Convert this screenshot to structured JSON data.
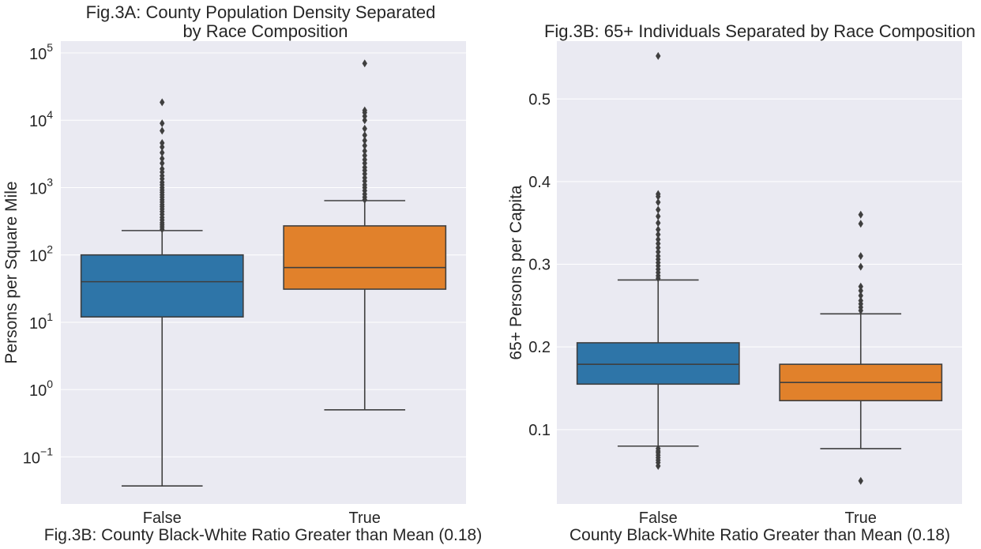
{
  "chart_data": [
    {
      "type": "box",
      "title_lines": [
        "Fig.3A: County Population Density Separated",
        "by Race Composition"
      ],
      "xlabel": "Fig.3B: County Black-White Ratio Greater than Mean (0.18)",
      "ylabel": "Persons per Square Mile",
      "yscale": "log",
      "ylim": [
        0.02,
        150000
      ],
      "y_ticks": [
        {
          "value": 0.1,
          "base": "10",
          "exp": "−1"
        },
        {
          "value": 1,
          "base": "10",
          "exp": "0"
        },
        {
          "value": 10,
          "base": "10",
          "exp": "1"
        },
        {
          "value": 100,
          "base": "10",
          "exp": "2"
        },
        {
          "value": 1000,
          "base": "10",
          "exp": "3"
        },
        {
          "value": 10000,
          "base": "10",
          "exp": "4"
        },
        {
          "value": 100000,
          "base": "10",
          "exp": "5"
        }
      ],
      "categories": [
        "False",
        "True"
      ],
      "boxes": [
        {
          "category": "False",
          "color": "#2e75a8",
          "whislo": 0.037,
          "q1": 12,
          "med": 40,
          "q3": 100,
          "whishi": 230,
          "fliers": [
            240,
            260,
            280,
            300,
            330,
            360,
            400,
            440,
            480,
            520,
            560,
            610,
            660,
            720,
            780,
            850,
            920,
            1000,
            1100,
            1200,
            1350,
            1500,
            1700,
            1900,
            2300,
            2700,
            3300,
            4000,
            4600,
            7000,
            9000,
            18500
          ]
        },
        {
          "category": "True",
          "color": "#e1812b",
          "whislo": 0.5,
          "q1": 31,
          "med": 65,
          "q3": 270,
          "whishi": 640,
          "fliers": [
            660,
            720,
            800,
            900,
            1000,
            1100,
            1250,
            1400,
            1600,
            1800,
            2000,
            2300,
            2600,
            3000,
            3500,
            4200,
            5000,
            6000,
            7500,
            10000,
            11500,
            13000,
            14000,
            70000
          ]
        }
      ]
    },
    {
      "type": "box",
      "title_lines": [
        "Fig.3B: 65+ Individuals Separated by Race Composition"
      ],
      "xlabel": "County Black-White Ratio Greater than Mean (0.18)",
      "ylabel": "65+ Persons per Capita",
      "yscale": "linear",
      "ylim": [
        0.01,
        0.57
      ],
      "y_ticks": [
        {
          "value": 0.1,
          "label": "0.1"
        },
        {
          "value": 0.2,
          "label": "0.2"
        },
        {
          "value": 0.3,
          "label": "0.3"
        },
        {
          "value": 0.4,
          "label": "0.4"
        },
        {
          "value": 0.5,
          "label": "0.5"
        }
      ],
      "categories": [
        "False",
        "True"
      ],
      "boxes": [
        {
          "category": "False",
          "color": "#2e75a8",
          "whislo": 0.08,
          "q1": 0.155,
          "med": 0.179,
          "q3": 0.205,
          "whishi": 0.281,
          "fliers": [
            0.056,
            0.06,
            0.063,
            0.066,
            0.069,
            0.072,
            0.074,
            0.077,
            0.283,
            0.286,
            0.29,
            0.294,
            0.298,
            0.302,
            0.306,
            0.31,
            0.315,
            0.32,
            0.325,
            0.33,
            0.336,
            0.342,
            0.35,
            0.358,
            0.366,
            0.375,
            0.382,
            0.385,
            0.552
          ]
        },
        {
          "category": "True",
          "color": "#e1812b",
          "whislo": 0.077,
          "q1": 0.135,
          "med": 0.157,
          "q3": 0.179,
          "whishi": 0.24,
          "fliers": [
            0.038,
            0.244,
            0.248,
            0.252,
            0.256,
            0.262,
            0.268,
            0.273,
            0.297,
            0.31,
            0.349,
            0.36
          ]
        }
      ]
    }
  ]
}
